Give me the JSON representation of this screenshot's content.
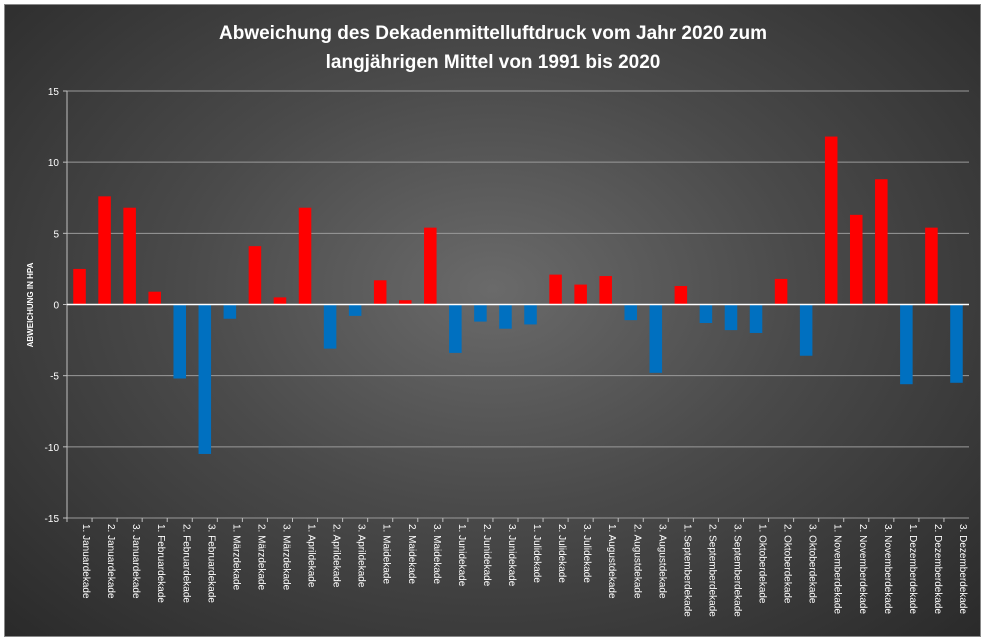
{
  "chart_data": {
    "type": "bar",
    "title_line1": "Abweichung des Dekadenmittelluftdruck vom Jahr 2020 zum",
    "title_line2": "langjährigen Mittel von 1991 bis 2020",
    "ylabel": "ABWEICHUNG IN HPA",
    "xlabel": "",
    "ylim": [
      -15,
      15
    ],
    "yticks": [
      15,
      10,
      5,
      0,
      -5,
      -10,
      -15
    ],
    "grid": true,
    "legend": "none",
    "positive_color": "#ff0000",
    "negative_color": "#0070c0",
    "categories": [
      "1. Januardekade",
      "2. Januardekade",
      "3. Januardekade",
      "1. Februardekade",
      "2. Februardekade",
      "3. Februardekade",
      "1. Märzdekade",
      "2. Märzdekade",
      "3. Märzdekade",
      "1. Aprildekade",
      "2. Aprildekade",
      "3. Aprildekade",
      "1. Maidekade",
      "2. Maidekade",
      "3. Maidekade",
      "1. Junidekade",
      "2. Junidekade",
      "3. Junidekade",
      "1. Julidekade",
      "2. Julidekade",
      "3. Julidekade",
      "1. Augustdekade",
      "2. Augustdekade",
      "3. Augustdekade",
      "1. Septemberdekade",
      "2. Septemberdekade",
      "3. Septemberdekade",
      "1. Oktoberdekade",
      "2. Oktoberdekade",
      "3. Oktoberdekade",
      "1. Novemberdekade",
      "2. Novemberdekade",
      "3. Novemberdekade",
      "1. Dezemberdekade",
      "2. Dezemberdekade",
      "3. Dezemberdekade"
    ],
    "values": [
      2.5,
      7.6,
      6.8,
      0.9,
      -5.2,
      -10.5,
      -1.0,
      4.1,
      0.5,
      6.8,
      -3.1,
      -0.8,
      1.7,
      0.3,
      5.4,
      -3.4,
      -1.2,
      -1.7,
      -1.4,
      2.1,
      1.4,
      2.0,
      -1.1,
      -4.8,
      1.3,
      -1.3,
      -1.8,
      -2.0,
      1.8,
      -3.6,
      11.8,
      6.3,
      8.8,
      -5.6,
      5.4,
      -5.5
    ]
  }
}
